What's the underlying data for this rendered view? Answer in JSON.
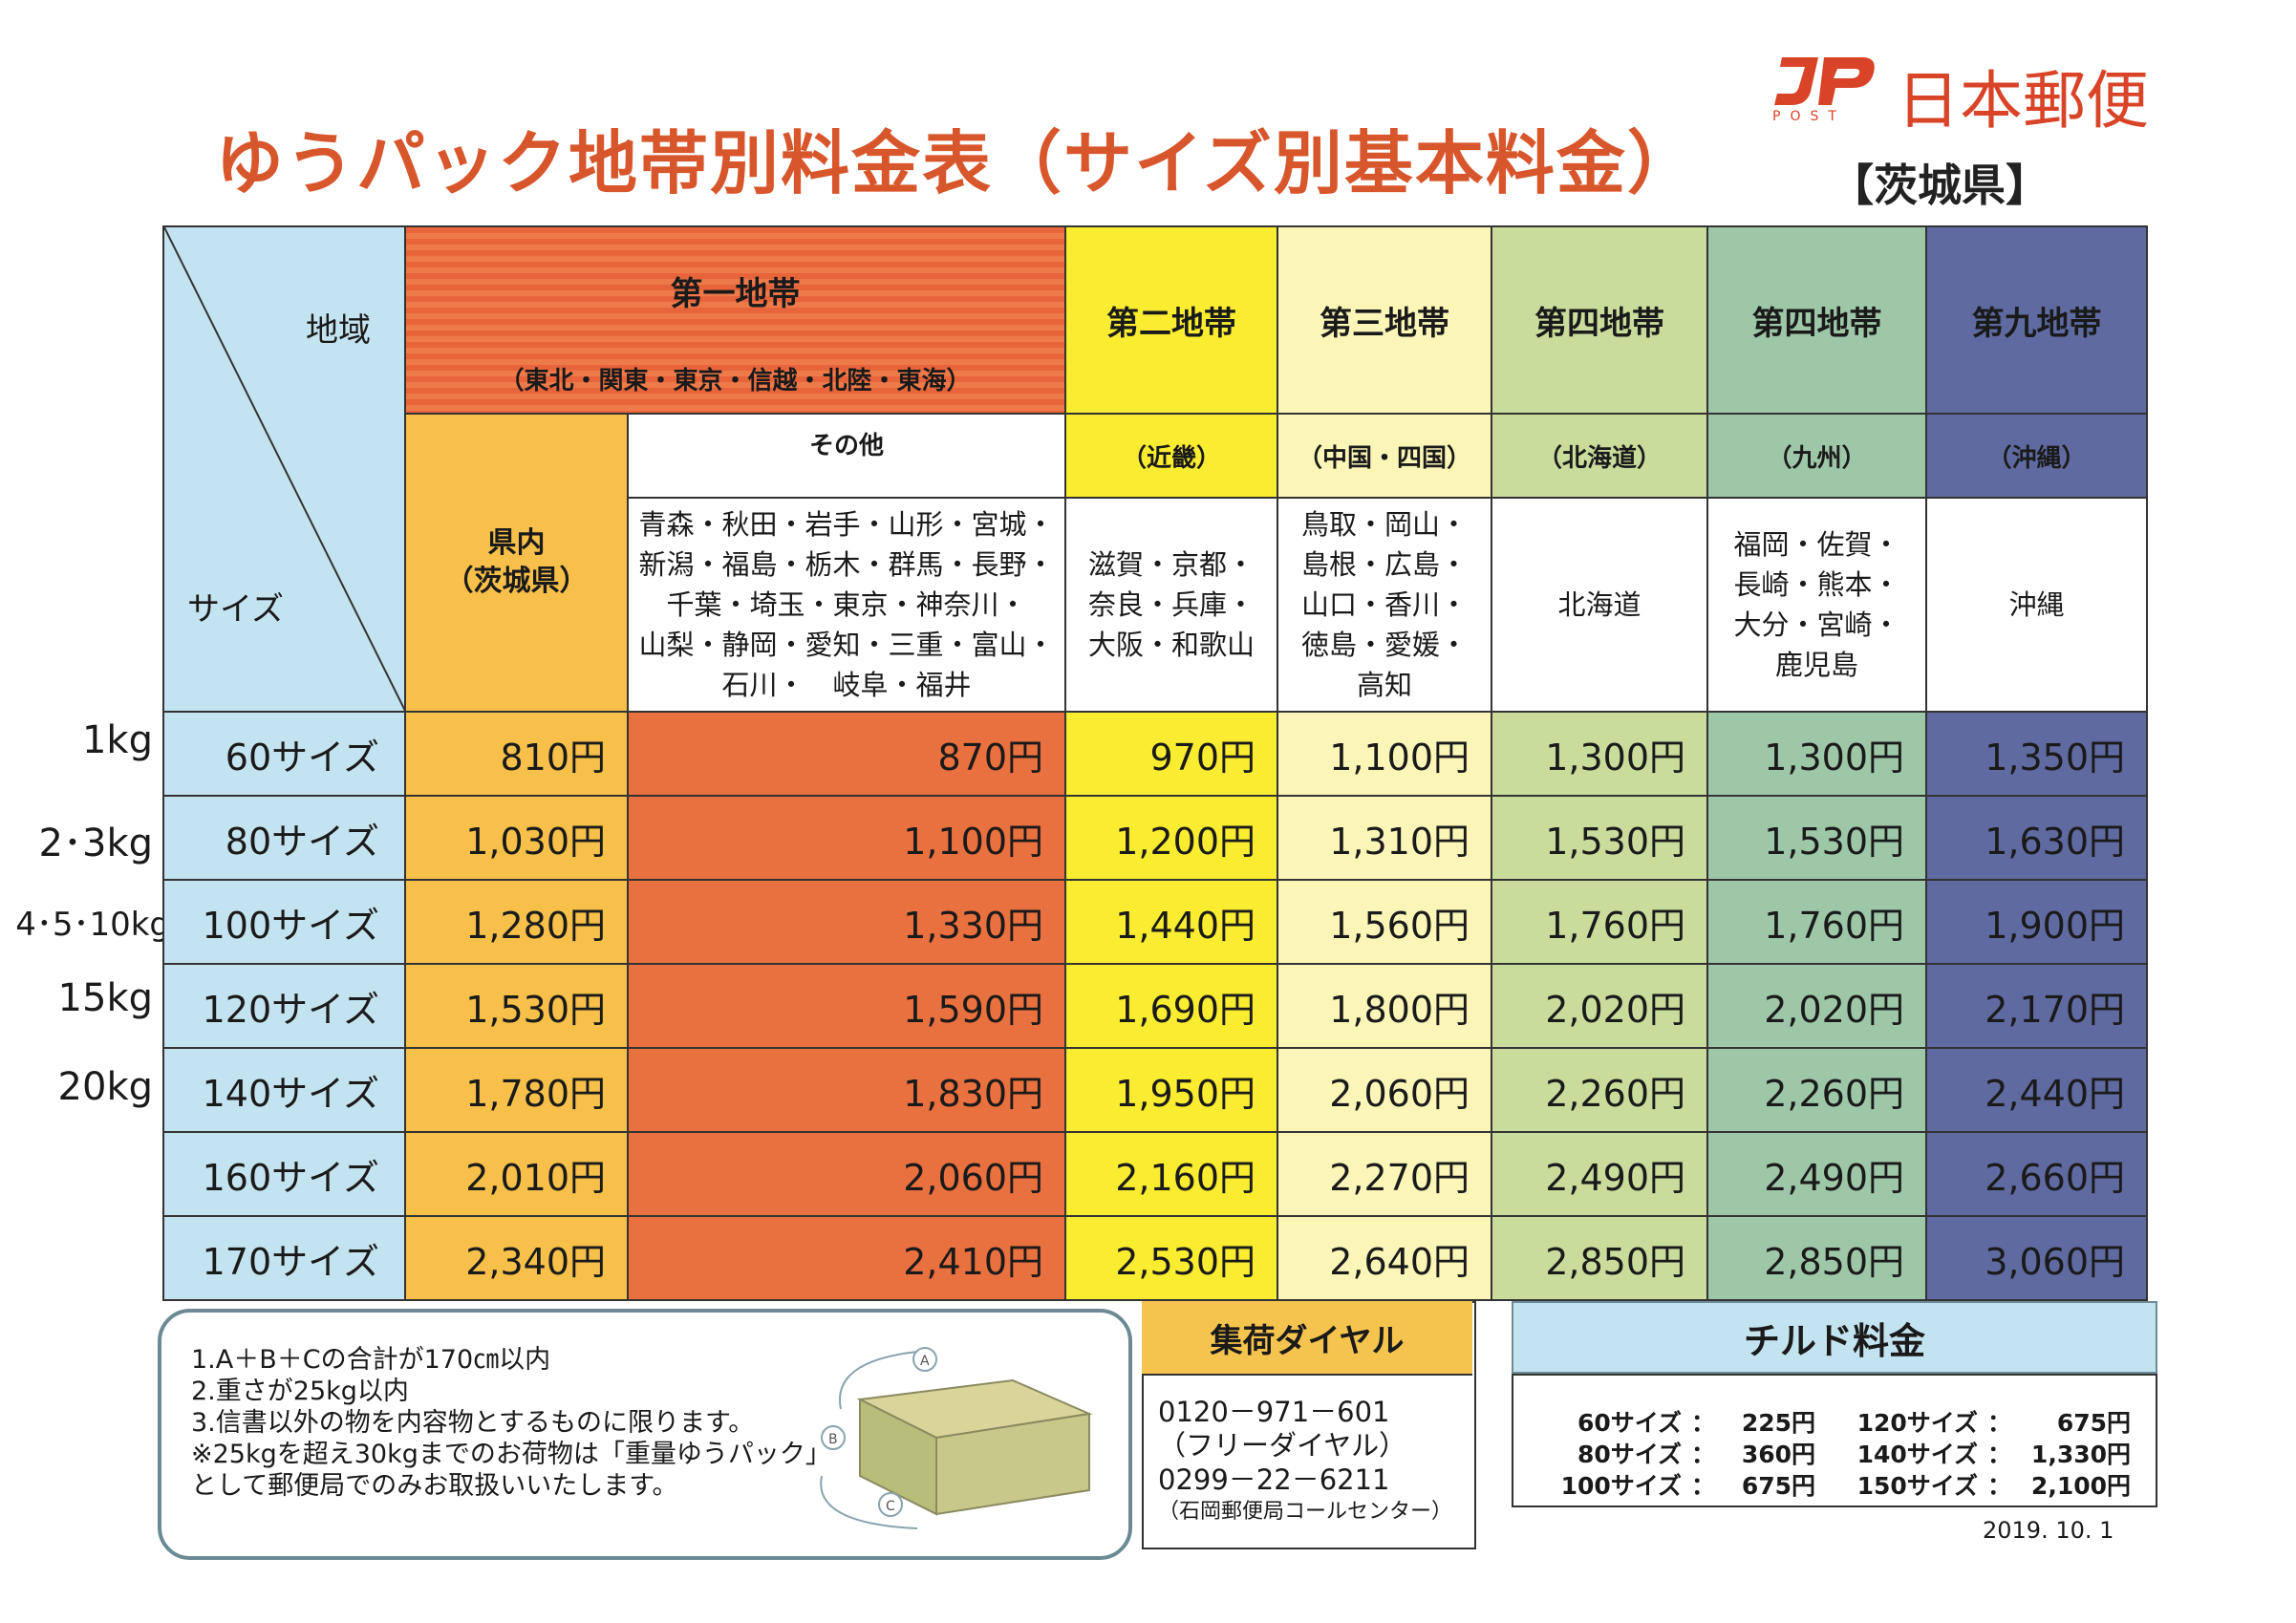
{
  "header": {
    "title": "ゆうパック地帯別料金表（サイズ別基本料金）",
    "logo_text": "日本郵便",
    "logo_sub": "POST",
    "prefecture": "【茨城県】"
  },
  "table": {
    "region_label": "地域",
    "size_label": "サイズ",
    "zone1": {
      "name": "第一地帯",
      "sub": "（東北・関東・東京・信越・北陸・東海）"
    },
    "kennai": {
      "name": "県内",
      "sub": "（茨城県）"
    },
    "sonota": {
      "name": "その他",
      "prefs": [
        "青森・秋田・岩手・山形・宮城・",
        "新潟・福島・栃木・群馬・長野・",
        "千葉・埼玉・東京・神奈川・",
        "山梨・静岡・愛知・三重・富山・",
        "石川・　岐阜・福井"
      ]
    },
    "zone2": {
      "name": "第二地帯",
      "sub": "（近畿）",
      "prefs": [
        "滋賀・京都・",
        "奈良・兵庫・",
        "大阪・和歌山"
      ]
    },
    "zone3": {
      "name": "第三地帯",
      "sub": "（中国・四国）",
      "prefs": [
        "鳥取・岡山・",
        "島根・広島・",
        "山口・香川・",
        "徳島・愛媛・",
        "高知"
      ]
    },
    "zone4h": {
      "name": "第四地帯",
      "sub": "（北海道）",
      "prefs": [
        "北海道"
      ]
    },
    "zone4k": {
      "name": "第四地帯",
      "sub": "（九州）",
      "prefs": [
        "福岡・佐賀・",
        "長崎・熊本・",
        "大分・宮崎・",
        "鹿児島"
      ]
    },
    "zone9": {
      "name": "第九地帯",
      "sub": "（沖縄）",
      "prefs": [
        "沖縄"
      ]
    },
    "rows": [
      {
        "weight": "1kg",
        "size": "60サイズ",
        "prices": [
          "810円",
          "870円",
          "970円",
          "1,100円",
          "1,300円",
          "1,300円",
          "1,350円"
        ]
      },
      {
        "weight": "2･3kg",
        "size": "80サイズ",
        "prices": [
          "1,030円",
          "1,100円",
          "1,200円",
          "1,310円",
          "1,530円",
          "1,530円",
          "1,630円"
        ]
      },
      {
        "weight": "4･5･10kg",
        "size": "100サイズ",
        "prices": [
          "1,280円",
          "1,330円",
          "1,440円",
          "1,560円",
          "1,760円",
          "1,760円",
          "1,900円"
        ]
      },
      {
        "weight": "15kg",
        "size": "120サイズ",
        "prices": [
          "1,530円",
          "1,590円",
          "1,690円",
          "1,800円",
          "2,020円",
          "2,020円",
          "2,170円"
        ]
      },
      {
        "weight": "20kg",
        "size": "140サイズ",
        "prices": [
          "1,780円",
          "1,830円",
          "1,950円",
          "2,060円",
          "2,260円",
          "2,260円",
          "2,440円"
        ]
      },
      {
        "weight": "",
        "size": "160サイズ",
        "prices": [
          "2,010円",
          "2,060円",
          "2,160円",
          "2,270円",
          "2,490円",
          "2,490円",
          "2,660円"
        ]
      },
      {
        "weight": "",
        "size": "170サイズ",
        "prices": [
          "2,340円",
          "2,410円",
          "2,530円",
          "2,640円",
          "2,850円",
          "2,850円",
          "3,060円"
        ]
      }
    ]
  },
  "notes": {
    "lines": [
      "1.A＋B＋Cの合計が170㎝以内",
      "2.重さが25kg以内",
      "3.信書以外の物を内容物とするものに限ります。",
      "※25kgを超え30kgまでのお荷物は「重量ゆうパック」",
      "として郵便局でのみお取扱いいたします。"
    ],
    "box_labels": [
      "A",
      "B",
      "C"
    ]
  },
  "dial": {
    "title": "集荷ダイヤル",
    "lines": [
      "0120－971－601",
      "（フリーダイヤル）",
      "0299－22－6211",
      "（石岡郵便局コールセンター）"
    ]
  },
  "chilled": {
    "title": "チルド料金",
    "rows": [
      {
        "size1": "60サイズ",
        "price1": "225円",
        "size2": "120サイズ",
        "price2": "675円"
      },
      {
        "size1": "80サイズ",
        "price1": "360円",
        "size2": "140サイズ",
        "price2": "1,330円"
      },
      {
        "size1": "100サイズ",
        "price1": "675円",
        "size2": "150サイズ",
        "price2": "2,100円"
      }
    ],
    "sep": "："
  },
  "date": "2019. 10. 1",
  "colors": {
    "title": "#d8562c",
    "zone1": "#e8643a",
    "kennai": "#f6c04a",
    "zone2": "#faec30",
    "zone3": "#fbf6b8",
    "zone4": "#c9dc9c",
    "zone4k": "#9ec7a8",
    "zone9": "#5e6aa0",
    "header_blue": "#c4e3f0"
  }
}
